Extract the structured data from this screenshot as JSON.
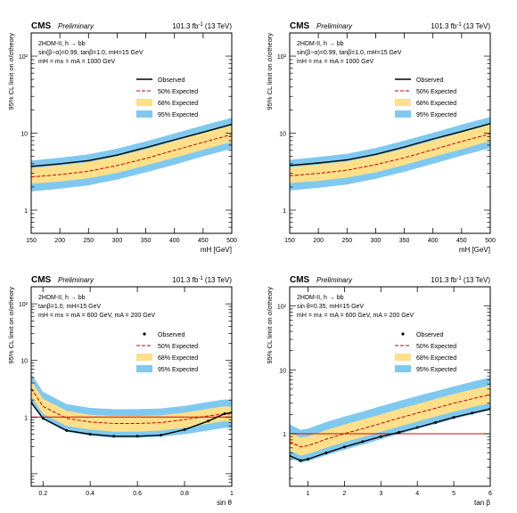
{
  "figure": {
    "cms": "CMS",
    "preliminary": "Preliminary",
    "lumi": "101.3 fb",
    "lumi_sup": "-1",
    "energy": "(13 TeV)",
    "legend": {
      "observed": "Observed",
      "expected": "50% Expected",
      "band68": "68% Expected",
      "band95": "95% Expected"
    },
    "colors": {
      "band68": "#fde089",
      "band95": "#7fc9f0",
      "expected": "#cc0000",
      "observed": "#000000",
      "reference": "#e00000"
    }
  },
  "chart_data": [
    {
      "type": "line",
      "model": "2HDM-II, h → bb",
      "params": [
        "sin(β−α)=0.99, tanβ=1.0, mH=15 GeV",
        "mH = m± = mA = 1000 GeV"
      ],
      "xlabel": "mH [GeV]",
      "ylabel": "95% CL limit on σ/σtheory",
      "xscale": "linear",
      "yscale": "log",
      "xlim": [
        150,
        500
      ],
      "ylim": [
        0.5,
        200
      ],
      "xticks": [
        150,
        200,
        250,
        300,
        350,
        400,
        450,
        500
      ],
      "yticks": [
        1,
        10,
        100
      ],
      "yticklabels": [
        "1",
        "10",
        "10²"
      ],
      "reference_line": null,
      "x": [
        150,
        200,
        250,
        300,
        350,
        400,
        450,
        500
      ],
      "observed": [
        3.7,
        4.0,
        4.4,
        5.2,
        6.5,
        8.2,
        10.3,
        13.0
      ],
      "expected": [
        2.7,
        2.9,
        3.2,
        3.8,
        4.7,
        6.0,
        7.6,
        9.6
      ],
      "band68": {
        "low": [
          2.2,
          2.35,
          2.6,
          3.05,
          3.8,
          4.8,
          6.1,
          7.7
        ],
        "high": [
          3.5,
          3.8,
          4.2,
          5.0,
          6.2,
          7.9,
          10.0,
          12.6
        ]
      },
      "band95": {
        "low": [
          1.75,
          1.9,
          2.1,
          2.5,
          3.1,
          3.9,
          5.0,
          6.3
        ],
        "high": [
          4.4,
          4.8,
          5.3,
          6.3,
          7.8,
          9.9,
          12.6,
          15.8
        ]
      }
    },
    {
      "type": "line",
      "model": "2HDM-II, h → bb",
      "params": [
        "sin(β−α)=0.99, tanβ=1.0, mH=15 GeV",
        "mH = m± = mA = 1000 GeV"
      ],
      "xlabel": "mH [GeV]",
      "ylabel": "95% CL limit on σ/σtheory",
      "xscale": "linear",
      "yscale": "log",
      "xlim": [
        150,
        500
      ],
      "ylim": [
        0.5,
        200
      ],
      "xticks": [
        150,
        200,
        250,
        300,
        350,
        400,
        450,
        500
      ],
      "yticks": [
        1,
        10,
        100
      ],
      "yticklabels": [
        "1",
        "10",
        "10²"
      ],
      "reference_line": null,
      "x": [
        150,
        200,
        250,
        300,
        350,
        400,
        450,
        500
      ],
      "observed": [
        3.8,
        4.1,
        4.5,
        5.3,
        6.6,
        8.4,
        10.5,
        13.3
      ],
      "expected": [
        2.8,
        3.0,
        3.3,
        3.9,
        4.8,
        6.1,
        7.8,
        9.8
      ],
      "band68": {
        "low": [
          2.25,
          2.4,
          2.65,
          3.1,
          3.85,
          4.9,
          6.2,
          7.9
        ],
        "high": [
          3.6,
          3.9,
          4.3,
          5.1,
          6.3,
          8.0,
          10.2,
          12.9
        ]
      },
      "band95": {
        "low": [
          1.8,
          1.95,
          2.15,
          2.55,
          3.15,
          4.0,
          5.1,
          6.4
        ],
        "high": [
          4.5,
          4.9,
          5.4,
          6.4,
          8.0,
          10.1,
          12.9,
          16.2
        ]
      }
    },
    {
      "type": "line",
      "model": "2HDM-II, h → bb",
      "params": [
        "tanβ=1.0, mH=15 GeV",
        "mH = m± = mA = 600 GeV, mA = 200 GeV"
      ],
      "xlabel": "sin θ",
      "ylabel": "95% CL limit on σ/σtheory",
      "xscale": "linear",
      "yscale": "log",
      "xlim": [
        0.15,
        1.0
      ],
      "ylim": [
        0.06,
        200
      ],
      "xticks": [
        0.2,
        0.4,
        0.6,
        0.8,
        1.0
      ],
      "yticks": [
        0.1,
        1,
        10,
        100
      ],
      "yticklabels": [
        "",
        "1",
        "10",
        "10²"
      ],
      "reference_line": 1,
      "x": [
        0.15,
        0.2,
        0.3,
        0.4,
        0.5,
        0.6,
        0.7,
        0.8,
        0.9,
        0.97,
        1.0
      ],
      "observed": [
        1.8,
        0.95,
        0.58,
        0.5,
        0.46,
        0.46,
        0.48,
        0.6,
        0.85,
        1.15,
        1.2
      ],
      "expected": [
        3.2,
        1.55,
        0.95,
        0.82,
        0.77,
        0.77,
        0.8,
        0.9,
        1.05,
        1.15,
        1.12
      ],
      "band68": {
        "low": [
          2.3,
          1.15,
          0.7,
          0.6,
          0.55,
          0.55,
          0.58,
          0.65,
          0.76,
          0.85,
          0.82
        ],
        "high": [
          4.4,
          2.1,
          1.3,
          1.1,
          1.05,
          1.05,
          1.08,
          1.2,
          1.4,
          1.55,
          1.52
        ]
      },
      "band95": {
        "low": [
          1.75,
          0.9,
          0.55,
          0.47,
          0.43,
          0.43,
          0.45,
          0.5,
          0.58,
          0.65,
          0.63
        ],
        "high": [
          5.8,
          2.8,
          1.7,
          1.45,
          1.38,
          1.38,
          1.42,
          1.58,
          1.85,
          2.05,
          2.0
        ]
      }
    },
    {
      "type": "line",
      "model": "2HDM-II, h → bb",
      "params": [
        "sin θ=0.35, mH=15 GeV",
        "mH = m± = mA = 600 GeV, mA = 200 GeV"
      ],
      "xlabel": "tan β",
      "ylabel": "95% CL limit on σ/σtheory",
      "xscale": "linear",
      "yscale": "log",
      "xlim": [
        0.5,
        6.0
      ],
      "ylim": [
        0.15,
        200
      ],
      "xticks": [
        1,
        2,
        3,
        4,
        5,
        6
      ],
      "yticks": [
        1,
        10,
        100
      ],
      "yticklabels": [
        "1",
        "10",
        "10²"
      ],
      "reference_line": 1,
      "x": [
        0.5,
        0.8,
        1.0,
        1.5,
        2,
        2.5,
        3,
        3.5,
        4,
        4.5,
        5,
        5.5,
        6.0
      ],
      "observed": [
        0.45,
        0.38,
        0.4,
        0.5,
        0.62,
        0.75,
        0.9,
        1.05,
        1.25,
        1.5,
        1.8,
        2.1,
        2.45
      ],
      "expected": [
        0.75,
        0.62,
        0.65,
        0.82,
        1.0,
        1.2,
        1.45,
        1.75,
        2.1,
        2.5,
        3.0,
        3.5,
        4.1
      ],
      "band68": {
        "low": [
          0.55,
          0.45,
          0.48,
          0.6,
          0.74,
          0.88,
          1.07,
          1.29,
          1.55,
          1.85,
          2.2,
          2.6,
          3.0
        ],
        "high": [
          1.05,
          0.87,
          0.9,
          1.14,
          1.39,
          1.67,
          2.0,
          2.43,
          2.9,
          3.5,
          4.2,
          4.9,
          5.7
        ]
      },
      "band95": {
        "low": [
          0.42,
          0.35,
          0.37,
          0.46,
          0.56,
          0.67,
          0.82,
          0.99,
          1.19,
          1.41,
          1.7,
          2.0,
          2.3
        ],
        "high": [
          1.4,
          1.15,
          1.2,
          1.52,
          1.85,
          2.22,
          2.7,
          3.24,
          3.9,
          4.6,
          5.5,
          6.5,
          7.6
        ]
      }
    }
  ]
}
